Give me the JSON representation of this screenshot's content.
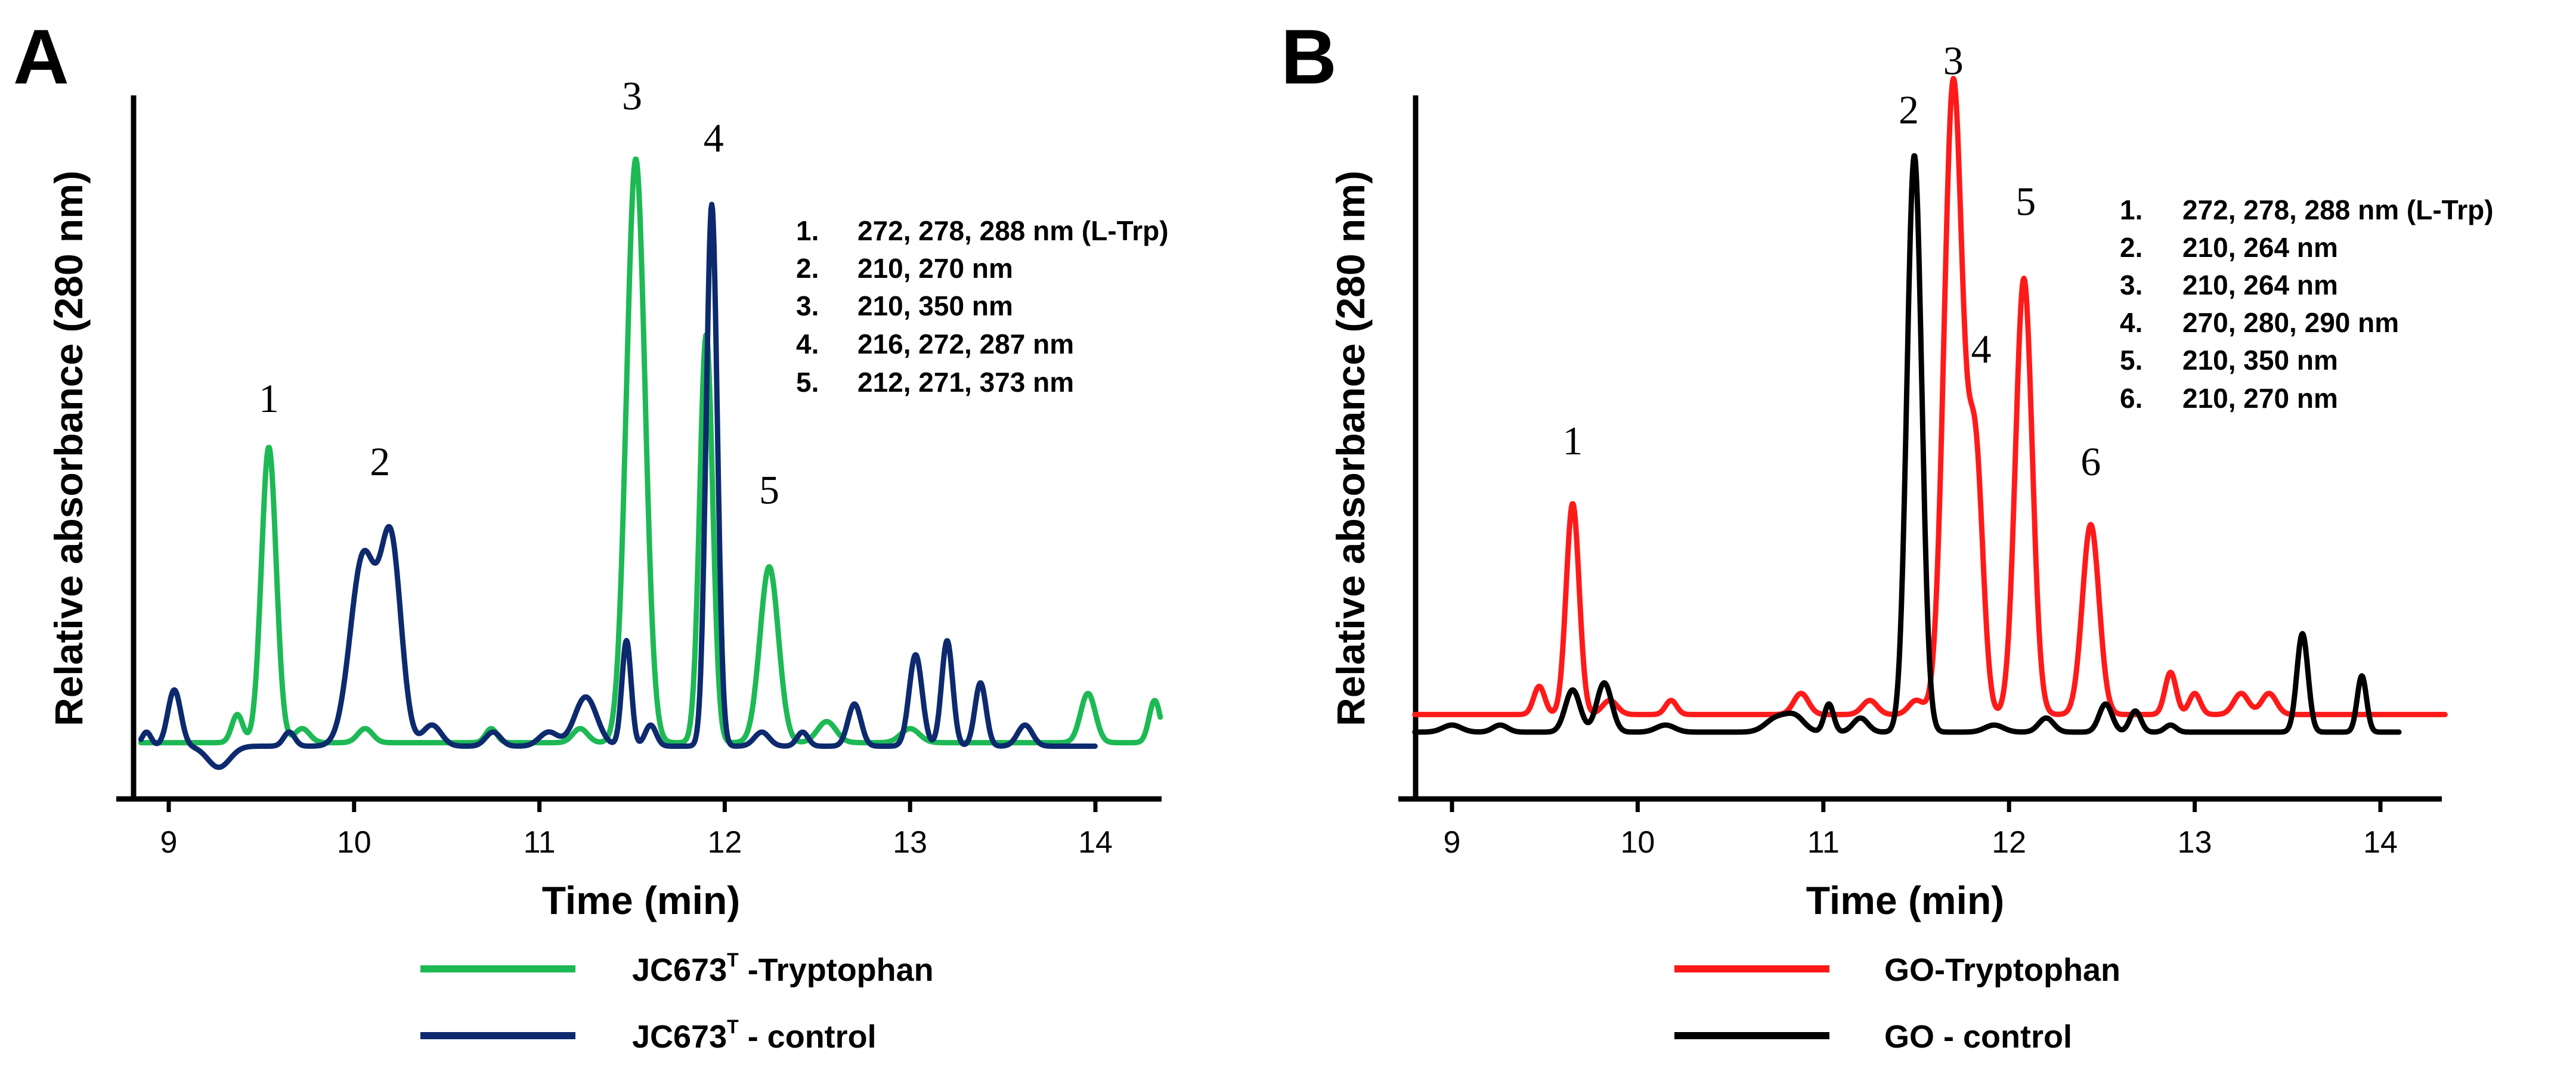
{
  "chart_data": [
    {
      "panel": "A",
      "type": "line",
      "xlabel": "Time (min)",
      "ylabel": "Relative absorbance (280 nm)",
      "xlim": [
        8.75,
        14.35
      ],
      "ylim": [
        0,
        1
      ],
      "xticks": [
        9,
        10,
        11,
        12,
        13,
        14
      ],
      "xtick_labels": [
        "9",
        "10",
        "11",
        "12",
        "13",
        "14"
      ],
      "grid": false,
      "series": [
        {
          "name": "JC673T -Tryptophan",
          "color": "#1db954",
          "baseline": 0.08,
          "x_range": [
            8.85,
            14.35
          ],
          "peaks": [
            [
              9.37,
              0.04,
              0.03
            ],
            [
              9.54,
              0.42,
              0.04
            ],
            [
              9.72,
              0.02,
              0.04
            ],
            [
              10.06,
              0.02,
              0.04
            ],
            [
              10.74,
              0.02,
              0.03
            ],
            [
              11.22,
              0.02,
              0.04
            ],
            [
              11.52,
              0.83,
              0.05
            ],
            [
              11.9,
              0.58,
              0.035
            ],
            [
              12.24,
              0.25,
              0.05
            ],
            [
              12.55,
              0.03,
              0.05
            ],
            [
              13.0,
              0.02,
              0.05
            ],
            [
              13.96,
              0.07,
              0.04
            ],
            [
              14.32,
              0.06,
              0.03
            ]
          ]
        },
        {
          "name": "JC673T - control",
          "color": "#0d2a6e",
          "baseline": 0.075,
          "x_range": [
            8.85,
            14.0
          ],
          "peaks": [
            [
              8.88,
              0.02,
              0.025
            ],
            [
              9.03,
              0.08,
              0.035
            ],
            [
              9.27,
              -0.03,
              0.06
            ],
            [
              9.65,
              0.02,
              0.03
            ],
            [
              10.05,
              0.27,
              0.07
            ],
            [
              10.2,
              0.28,
              0.055
            ],
            [
              10.42,
              0.03,
              0.05
            ],
            [
              10.75,
              0.02,
              0.04
            ],
            [
              11.05,
              0.02,
              0.05
            ],
            [
              11.25,
              0.07,
              0.06
            ],
            [
              11.47,
              0.15,
              0.025
            ],
            [
              11.6,
              0.03,
              0.03
            ],
            [
              11.93,
              0.77,
              0.03
            ],
            [
              12.2,
              0.02,
              0.04
            ],
            [
              12.42,
              0.02,
              0.03
            ],
            [
              12.7,
              0.06,
              0.035
            ],
            [
              13.03,
              0.13,
              0.035
            ],
            [
              13.2,
              0.15,
              0.03
            ],
            [
              13.38,
              0.09,
              0.03
            ],
            [
              13.62,
              0.03,
              0.04
            ]
          ]
        }
      ],
      "peak_labels": [
        {
          "label": "1",
          "x": 9.54,
          "y": 0.55
        },
        {
          "label": "2",
          "x": 10.14,
          "y": 0.46
        },
        {
          "label": "3",
          "x": 11.5,
          "y": 0.98
        },
        {
          "label": "4",
          "x": 11.94,
          "y": 0.92
        },
        {
          "label": "5",
          "x": 12.24,
          "y": 0.42
        }
      ],
      "annotations": [
        {
          "num": "1.",
          "text": "272, 278, 288 nm (L-Trp)"
        },
        {
          "num": "2.",
          "text": "210, 270 nm"
        },
        {
          "num": "3.",
          "text": "210, 350 nm"
        },
        {
          "num": "4.",
          "text": "216, 272, 287 nm"
        },
        {
          "num": "5.",
          "text": "212, 271, 373 nm"
        }
      ]
    },
    {
      "panel": "B",
      "type": "line",
      "xlabel": "Time (min)",
      "ylabel": "Relative absorbance (280 nm)",
      "xlim": [
        8.8,
        14.35
      ],
      "ylim": [
        0,
        1
      ],
      "xticks": [
        9,
        10,
        11,
        12,
        13,
        14
      ],
      "xtick_labels": [
        "9",
        "10",
        "11",
        "12",
        "13",
        "14"
      ],
      "grid": false,
      "series": [
        {
          "name": "GO-Tryptophan",
          "color": "#ff1a1a",
          "baseline": 0.12,
          "x_range": [
            8.8,
            14.35
          ],
          "peaks": [
            [
              9.47,
              0.04,
              0.03
            ],
            [
              9.65,
              0.3,
              0.035
            ],
            [
              9.85,
              0.02,
              0.04
            ],
            [
              10.18,
              0.02,
              0.03
            ],
            [
              10.88,
              0.03,
              0.04
            ],
            [
              11.25,
              0.02,
              0.04
            ],
            [
              11.5,
              0.02,
              0.04
            ],
            [
              11.7,
              0.9,
              0.05
            ],
            [
              11.82,
              0.36,
              0.04
            ],
            [
              12.08,
              0.62,
              0.045
            ],
            [
              12.44,
              0.27,
              0.045
            ],
            [
              12.87,
              0.06,
              0.03
            ],
            [
              13.0,
              0.03,
              0.03
            ],
            [
              13.25,
              0.03,
              0.04
            ],
            [
              13.4,
              0.03,
              0.04
            ]
          ]
        },
        {
          "name": "GO - control",
          "color": "#000000",
          "baseline": 0.095,
          "x_range": [
            8.8,
            14.1
          ],
          "peaks": [
            [
              9.0,
              0.01,
              0.05
            ],
            [
              9.26,
              0.01,
              0.04
            ],
            [
              9.65,
              0.06,
              0.04
            ],
            [
              9.82,
              0.07,
              0.04
            ],
            [
              10.15,
              0.01,
              0.05
            ],
            [
              10.75,
              0.02,
              0.06
            ],
            [
              10.85,
              0.02,
              0.05
            ],
            [
              11.03,
              0.04,
              0.025
            ],
            [
              11.2,
              0.02,
              0.04
            ],
            [
              11.49,
              0.82,
              0.04
            ],
            [
              11.92,
              0.01,
              0.05
            ],
            [
              12.2,
              0.02,
              0.04
            ],
            [
              12.52,
              0.04,
              0.035
            ],
            [
              12.68,
              0.03,
              0.03
            ],
            [
              12.87,
              0.01,
              0.03
            ],
            [
              13.58,
              0.14,
              0.03
            ],
            [
              13.9,
              0.08,
              0.025
            ]
          ]
        }
      ],
      "peak_labels": [
        {
          "label": "1",
          "x": 9.65,
          "y": 0.49
        },
        {
          "label": "2",
          "x": 11.46,
          "y": 0.96
        },
        {
          "label": "3",
          "x": 11.7,
          "y": 1.03
        },
        {
          "label": "4",
          "x": 11.85,
          "y": 0.62
        },
        {
          "label": "5",
          "x": 12.09,
          "y": 0.83
        },
        {
          "label": "6",
          "x": 12.44,
          "y": 0.46
        }
      ],
      "annotations": [
        {
          "num": "1.",
          "text": "272, 278, 288 nm (L-Trp)"
        },
        {
          "num": "2.",
          "text": "210, 264 nm"
        },
        {
          "num": "3.",
          "text": "210, 264 nm"
        },
        {
          "num": "4.",
          "text": "270, 280, 290 nm"
        },
        {
          "num": "5.",
          "text": "210, 350 nm"
        },
        {
          "num": "6.",
          "text": "210, 270 nm"
        }
      ]
    }
  ],
  "legend": {
    "a_series1": {
      "main": "JC673",
      "sup": "T",
      "rest": " -Tryptophan"
    },
    "a_series2": {
      "main": "JC673",
      "sup": "T",
      "rest": " - control"
    },
    "b_series1": "GO-Tryptophan",
    "b_series2": "GO - control"
  }
}
